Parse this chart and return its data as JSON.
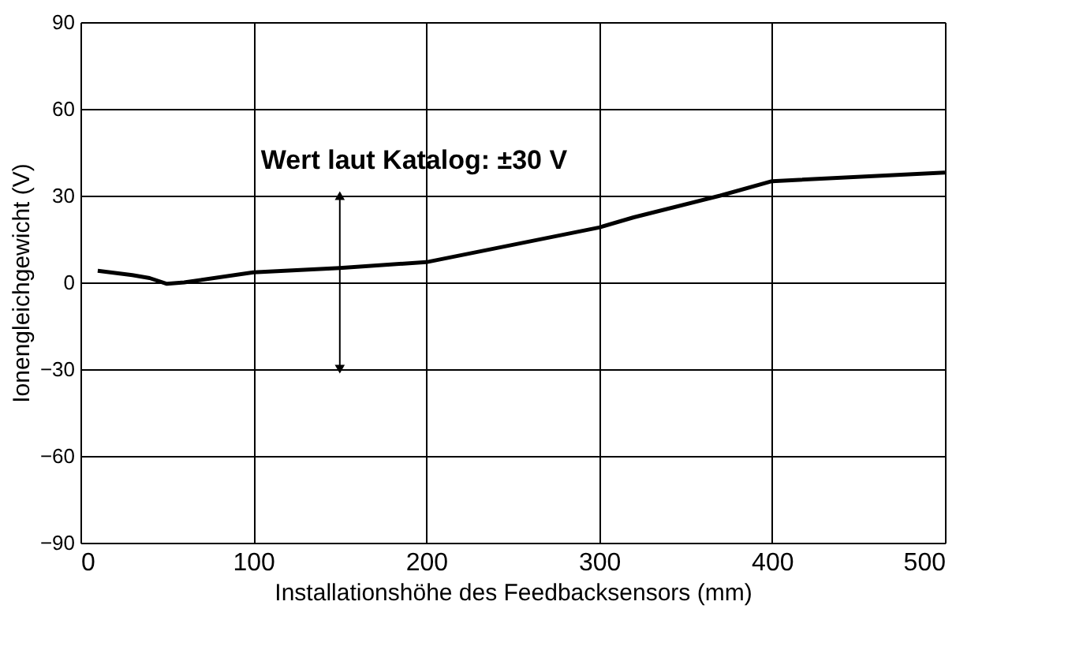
{
  "chart_data": {
    "type": "line",
    "xlabel": "Installationshöhe des Feedbacksensors (mm)",
    "ylabel": "Ionengleichgewicht (V)",
    "x": [
      10,
      30,
      40,
      50,
      60,
      100,
      150,
      200,
      300,
      320,
      370,
      400,
      500
    ],
    "series": [
      {
        "color": "#000000",
        "values": [
          4,
          2.5,
          1.5,
          -0.5,
          0,
          3.5,
          5,
          7,
          19,
          22.5,
          30,
          35,
          38
        ]
      }
    ],
    "xlim": [
      0,
      500
    ],
    "xticks": [
      0,
      100,
      200,
      300,
      400,
      500
    ],
    "ylim": [
      -90,
      90
    ],
    "yticks": [
      {
        "value": -90,
        "label": "−90"
      },
      {
        "value": -60,
        "label": "−60"
      },
      {
        "value": -30,
        "label": "−30"
      },
      0,
      30,
      60,
      90
    ],
    "grid": true,
    "marker": "none",
    "line_style": "solid",
    "annotations": [
      {
        "text": "Wert laut Katalog: ±30 V",
        "x": 150,
        "y": 30
      }
    ]
  }
}
